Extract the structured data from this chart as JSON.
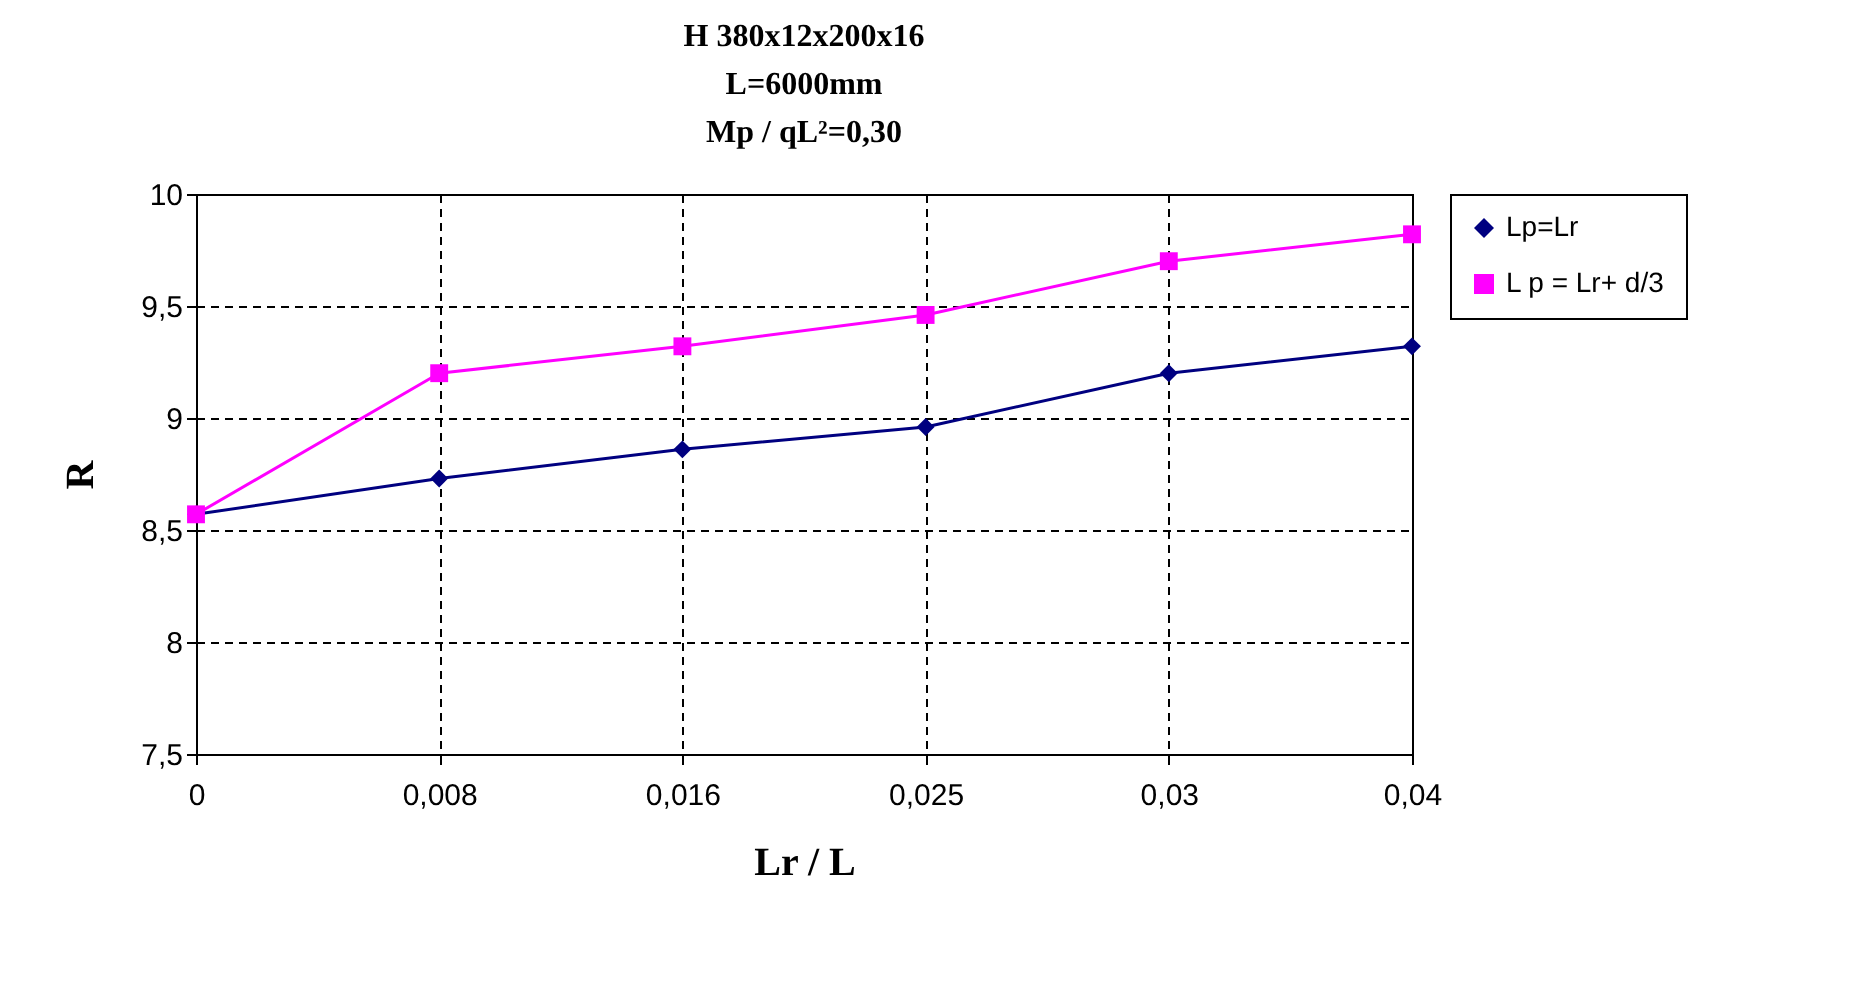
{
  "chart_data": {
    "type": "line",
    "title": [
      "H 380x12x200x16",
      "L=6000mm",
      "Mp / qL²=0,30"
    ],
    "xlabel": "Lr / L",
    "ylabel": "R",
    "categories": [
      "0",
      "0,008",
      "0,016",
      "0,025",
      "0,03",
      "0,04"
    ],
    "series": [
      {
        "name": "Lp=Lr",
        "color": "#000080",
        "marker": "diamond",
        "values": [
          8.57,
          8.73,
          8.86,
          8.96,
          9.2,
          9.32
        ]
      },
      {
        "name": "L p = Lr+ d/3",
        "color": "#ff00ff",
        "marker": "square",
        "values": [
          8.57,
          9.2,
          9.32,
          9.46,
          9.7,
          9.82
        ]
      }
    ],
    "ylim": [
      7.5,
      10
    ],
    "yticks": [
      {
        "value": 7.5,
        "label": "7,5"
      },
      8,
      {
        "value": 8.5,
        "label": "8,5"
      },
      9,
      {
        "value": 9.5,
        "label": "9,5"
      },
      10
    ],
    "grid": true,
    "legend": "right",
    "line_style": "solid"
  }
}
